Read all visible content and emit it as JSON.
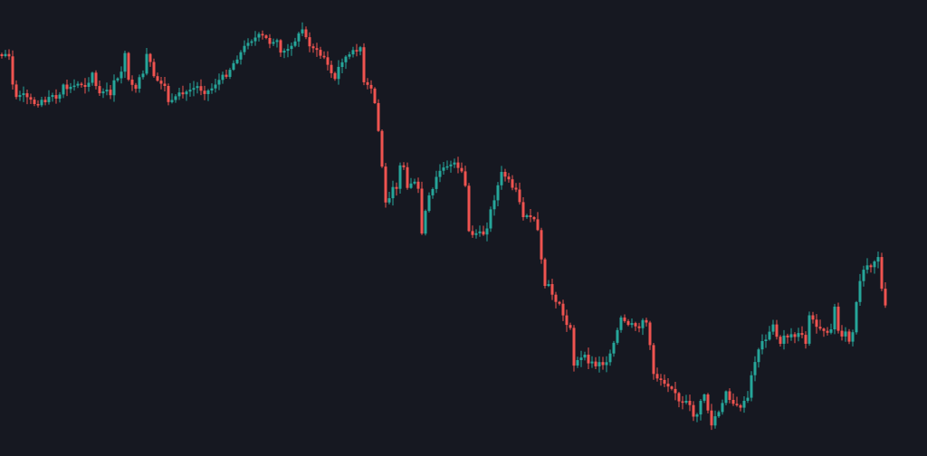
{
  "colors": {
    "background": "#161821",
    "up": "#26a69a",
    "down": "#ef5350"
  },
  "chart_data": {
    "type": "candlestick",
    "title": "",
    "xlabel": "",
    "ylabel": "",
    "grid": false,
    "axes_visible": false,
    "legend": "none",
    "ylim": [
      0,
      504
    ],
    "y_inverted": true,
    "anchors": [
      [
        0,
        60
      ],
      [
        10,
        60
      ],
      [
        16,
        112
      ],
      [
        22,
        105
      ],
      [
        34,
        112
      ],
      [
        40,
        115
      ],
      [
        46,
        110
      ],
      [
        52,
        112
      ],
      [
        58,
        105
      ],
      [
        64,
        112
      ],
      [
        70,
        96
      ],
      [
        76,
        98
      ],
      [
        82,
        95
      ],
      [
        88,
        92
      ],
      [
        96,
        94
      ],
      [
        102,
        80
      ],
      [
        106,
        96
      ],
      [
        110,
        102
      ],
      [
        118,
        101
      ],
      [
        124,
        104
      ],
      [
        128,
        78
      ],
      [
        132,
        98
      ],
      [
        137,
        48
      ],
      [
        142,
        90
      ],
      [
        148,
        100
      ],
      [
        154,
        88
      ],
      [
        158,
        84
      ],
      [
        163,
        55
      ],
      [
        169,
        86
      ],
      [
        175,
        90
      ],
      [
        181,
        92
      ],
      [
        187,
        116
      ],
      [
        193,
        110
      ],
      [
        199,
        104
      ],
      [
        205,
        102
      ],
      [
        211,
        100
      ],
      [
        217,
        95
      ],
      [
        221,
        98
      ],
      [
        226,
        101
      ],
      [
        232,
        100
      ],
      [
        238,
        92
      ],
      [
        244,
        87
      ],
      [
        250,
        82
      ],
      [
        256,
        73
      ],
      [
        262,
        63
      ],
      [
        268,
        56
      ],
      [
        274,
        45
      ],
      [
        280,
        43
      ],
      [
        286,
        40
      ],
      [
        292,
        41
      ],
      [
        298,
        47
      ],
      [
        304,
        44
      ],
      [
        310,
        56
      ],
      [
        316,
        62
      ],
      [
        322,
        48
      ],
      [
        328,
        42
      ],
      [
        334,
        32
      ],
      [
        340,
        47
      ],
      [
        346,
        52
      ],
      [
        352,
        60
      ],
      [
        358,
        63
      ],
      [
        364,
        77
      ],
      [
        370,
        88
      ],
      [
        376,
        68
      ],
      [
        382,
        63
      ],
      [
        388,
        60
      ],
      [
        394,
        54
      ],
      [
        398,
        52
      ],
      [
        402,
        93
      ],
      [
        407,
        96
      ],
      [
        412,
        102
      ],
      [
        416,
        126
      ],
      [
        421,
        173
      ],
      [
        426,
        225
      ],
      [
        432,
        212
      ],
      [
        438,
        205
      ],
      [
        444,
        176
      ],
      [
        450,
        205
      ],
      [
        456,
        200
      ],
      [
        462,
        210
      ],
      [
        466,
        258
      ],
      [
        472,
        222
      ],
      [
        478,
        210
      ],
      [
        484,
        190
      ],
      [
        490,
        186
      ],
      [
        496,
        185
      ],
      [
        502,
        182
      ],
      [
        508,
        190
      ],
      [
        513,
        193
      ],
      [
        518,
        256
      ],
      [
        524,
        262
      ],
      [
        530,
        258
      ],
      [
        536,
        258
      ],
      [
        542,
        233
      ],
      [
        548,
        212
      ],
      [
        554,
        192
      ],
      [
        560,
        196
      ],
      [
        566,
        210
      ],
      [
        572,
        210
      ],
      [
        576,
        240
      ],
      [
        582,
        236
      ],
      [
        586,
        242
      ],
      [
        592,
        247
      ],
      [
        596,
        264
      ],
      [
        600,
        315
      ],
      [
        606,
        316
      ],
      [
        612,
        330
      ],
      [
        618,
        333
      ],
      [
        624,
        358
      ],
      [
        630,
        360
      ],
      [
        634,
        403
      ],
      [
        640,
        397
      ],
      [
        646,
        395
      ],
      [
        652,
        402
      ],
      [
        658,
        403
      ],
      [
        664,
        396
      ],
      [
        668,
        408
      ],
      [
        674,
        393
      ],
      [
        680,
        373
      ],
      [
        686,
        353
      ],
      [
        692,
        356
      ],
      [
        698,
        362
      ],
      [
        704,
        360
      ],
      [
        710,
        353
      ],
      [
        716,
        358
      ],
      [
        720,
        410
      ],
      [
        726,
        417
      ],
      [
        732,
        420
      ],
      [
        738,
        425
      ],
      [
        744,
        428
      ],
      [
        750,
        445
      ],
      [
        756,
        447
      ],
      [
        762,
        450
      ],
      [
        768,
        463
      ],
      [
        774,
        445
      ],
      [
        780,
        430
      ],
      [
        784,
        476
      ],
      [
        790,
        460
      ],
      [
        796,
        455
      ],
      [
        802,
        432
      ],
      [
        808,
        443
      ],
      [
        814,
        450
      ],
      [
        820,
        448
      ],
      [
        826,
        440
      ],
      [
        832,
        405
      ],
      [
        838,
        385
      ],
      [
        844,
        375
      ],
      [
        848,
        370
      ],
      [
        852,
        367
      ],
      [
        856,
        352
      ],
      [
        860,
        388
      ],
      [
        866,
        370
      ],
      [
        872,
        368
      ],
      [
        878,
        372
      ],
      [
        884,
        368
      ],
      [
        890,
        378
      ],
      [
        894,
        350
      ],
      [
        900,
        355
      ],
      [
        904,
        362
      ],
      [
        910,
        368
      ],
      [
        916,
        372
      ],
      [
        922,
        340
      ],
      [
        928,
        378
      ],
      [
        934,
        368
      ],
      [
        940,
        382
      ],
      [
        944,
        354
      ],
      [
        948,
        318
      ],
      [
        954,
        300
      ],
      [
        960,
        292
      ],
      [
        966,
        288
      ],
      [
        970,
        283
      ],
      [
        974,
        320
      ],
      [
        978,
        340
      ]
    ]
  }
}
